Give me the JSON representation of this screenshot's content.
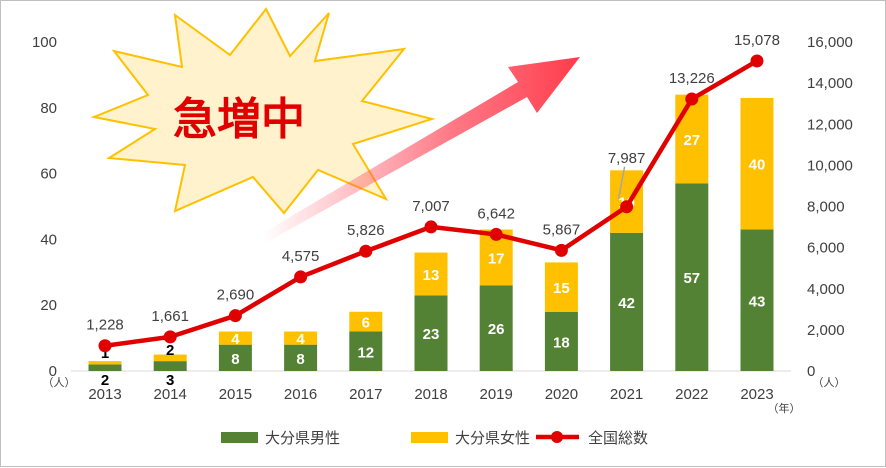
{
  "chart_data": {
    "type": "bar",
    "stacked": true,
    "categories": [
      "2013",
      "2014",
      "2015",
      "2016",
      "2017",
      "2018",
      "2019",
      "2020",
      "2021",
      "2022",
      "2023"
    ],
    "series": [
      {
        "name": "大分県男性",
        "type": "bar",
        "axis": "left",
        "color": "#548235",
        "values": [
          2,
          3,
          8,
          8,
          12,
          23,
          26,
          18,
          42,
          57,
          43
        ]
      },
      {
        "name": "大分県女性",
        "type": "bar",
        "axis": "left",
        "color": "#ffc000",
        "values": [
          1,
          2,
          4,
          4,
          6,
          13,
          17,
          15,
          19,
          27,
          40
        ]
      },
      {
        "name": "全国総数",
        "type": "line",
        "axis": "right",
        "color": "#e00000",
        "values": [
          1228,
          1661,
          2690,
          4575,
          5826,
          7007,
          6642,
          5867,
          7987,
          13226,
          15078
        ]
      }
    ],
    "line_labels": [
      "1,228",
      "1,661",
      "2,690",
      "4,575",
      "5,826",
      "7,007",
      "6,642",
      "5,867",
      "7,987",
      "13,226",
      "15,078"
    ],
    "left_axis": {
      "ylim": [
        0,
        100
      ],
      "ticks": [
        0,
        20,
        40,
        60,
        80,
        100
      ],
      "unit": "（人）"
    },
    "right_axis": {
      "ylim": [
        0,
        16000
      ],
      "ticks": [
        "0",
        "2,000",
        "4,000",
        "6,000",
        "8,000",
        "10,000",
        "12,000",
        "14,000",
        "16,000"
      ],
      "unit": "（人）"
    },
    "x_unit": "（年）",
    "annotation": "急増中",
    "legend_position": "bottom",
    "grid": false
  }
}
